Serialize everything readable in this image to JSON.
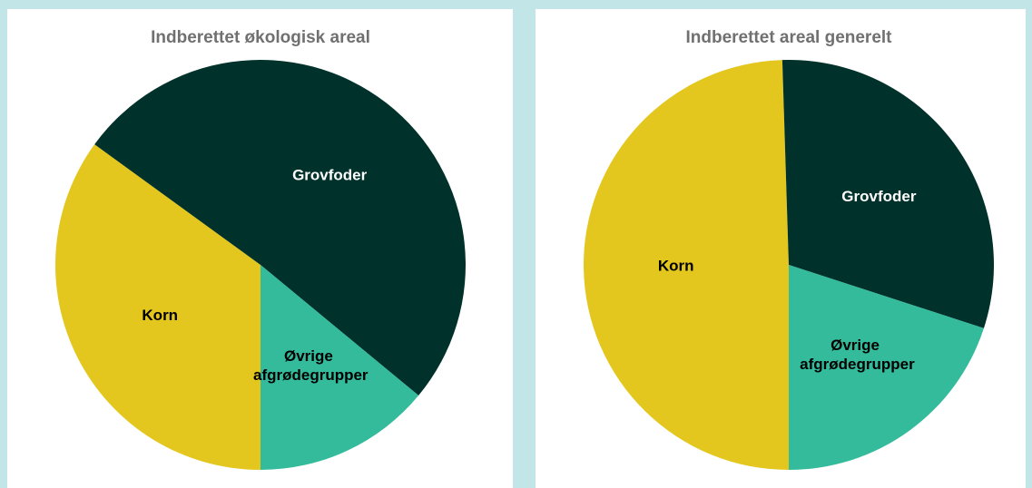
{
  "chart_data": [
    {
      "type": "pie",
      "title": "Indberettet økologisk areal",
      "categories": [
        "Korn",
        "Grovfoder",
        "Øvrige afgrødegrupper"
      ],
      "values": [
        35,
        51,
        14
      ],
      "colors": [
        "#e3c61e",
        "#00312a",
        "#33bb9b"
      ],
      "label_colors": [
        "#000000",
        "#ffffff",
        "#000000"
      ]
    },
    {
      "type": "pie",
      "title": "Indberettet areal generelt",
      "categories": [
        "Korn",
        "Grovfoder",
        "Øvrige afgrødegrupper"
      ],
      "values": [
        49.5,
        30.5,
        20
      ],
      "colors": [
        "#e3c61e",
        "#00312a",
        "#33bb9b"
      ],
      "label_colors": [
        "#000000",
        "#ffffff",
        "#000000"
      ]
    }
  ]
}
